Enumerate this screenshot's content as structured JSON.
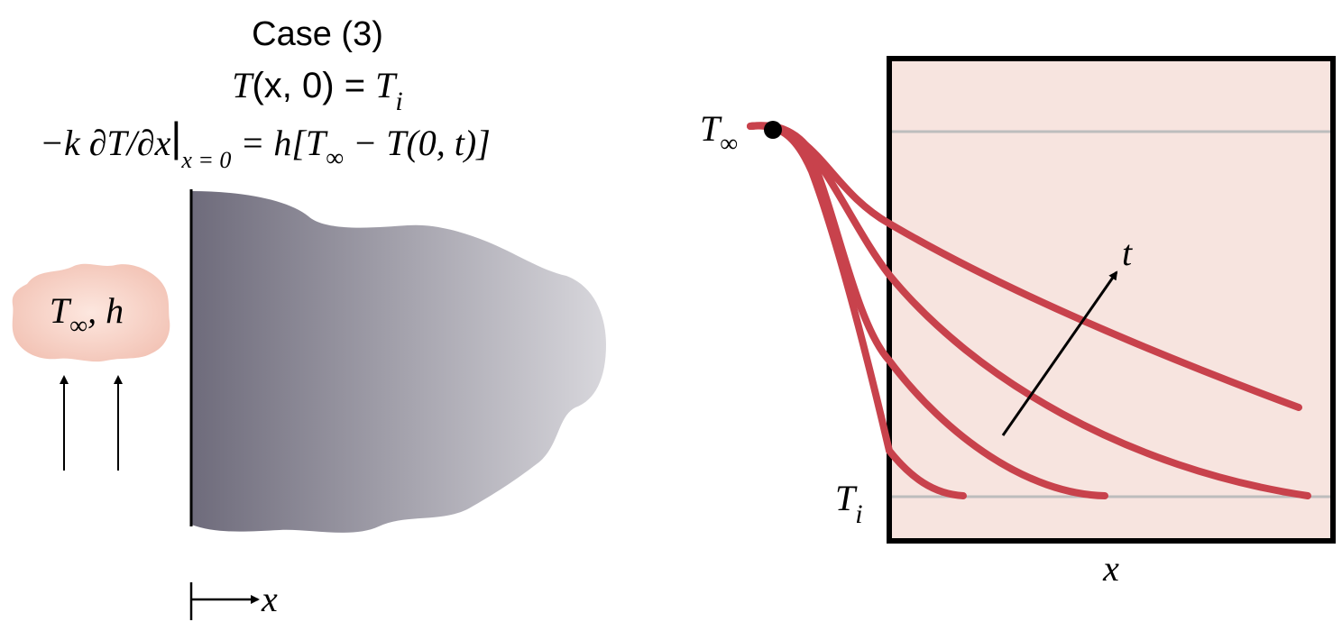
{
  "header": {
    "case_label": "Case (3)",
    "initial_condition": {
      "T": "T",
      "args": "(x, 0) = ",
      "Ti": "T",
      "i_sub": "i"
    },
    "boundary_condition": {
      "lhs": "−k ∂T/∂x",
      "bar": "|",
      "sub": "x = 0",
      "rhs_h": " = h[T",
      "inf_sub": "∞",
      "rhs_tail": " − T(0, t)]"
    }
  },
  "fluid": {
    "T": "T",
    "inf_sub": "∞",
    "h": ", h"
  },
  "solid": {
    "x_axis_label": "x"
  },
  "plot": {
    "T_inf_label": "T",
    "T_inf_sub": "∞",
    "T_i_label": "T",
    "T_i_sub": "i",
    "x_label": "x",
    "t_label": "t",
    "colors": {
      "curve": "#c8424c",
      "frame_fill": "#f7e4df",
      "guide": "#bdbdbd",
      "solid_dark": "#6e6b7b",
      "solid_light": "#d4d3d9",
      "fluid": "#f3c9bd"
    }
  }
}
